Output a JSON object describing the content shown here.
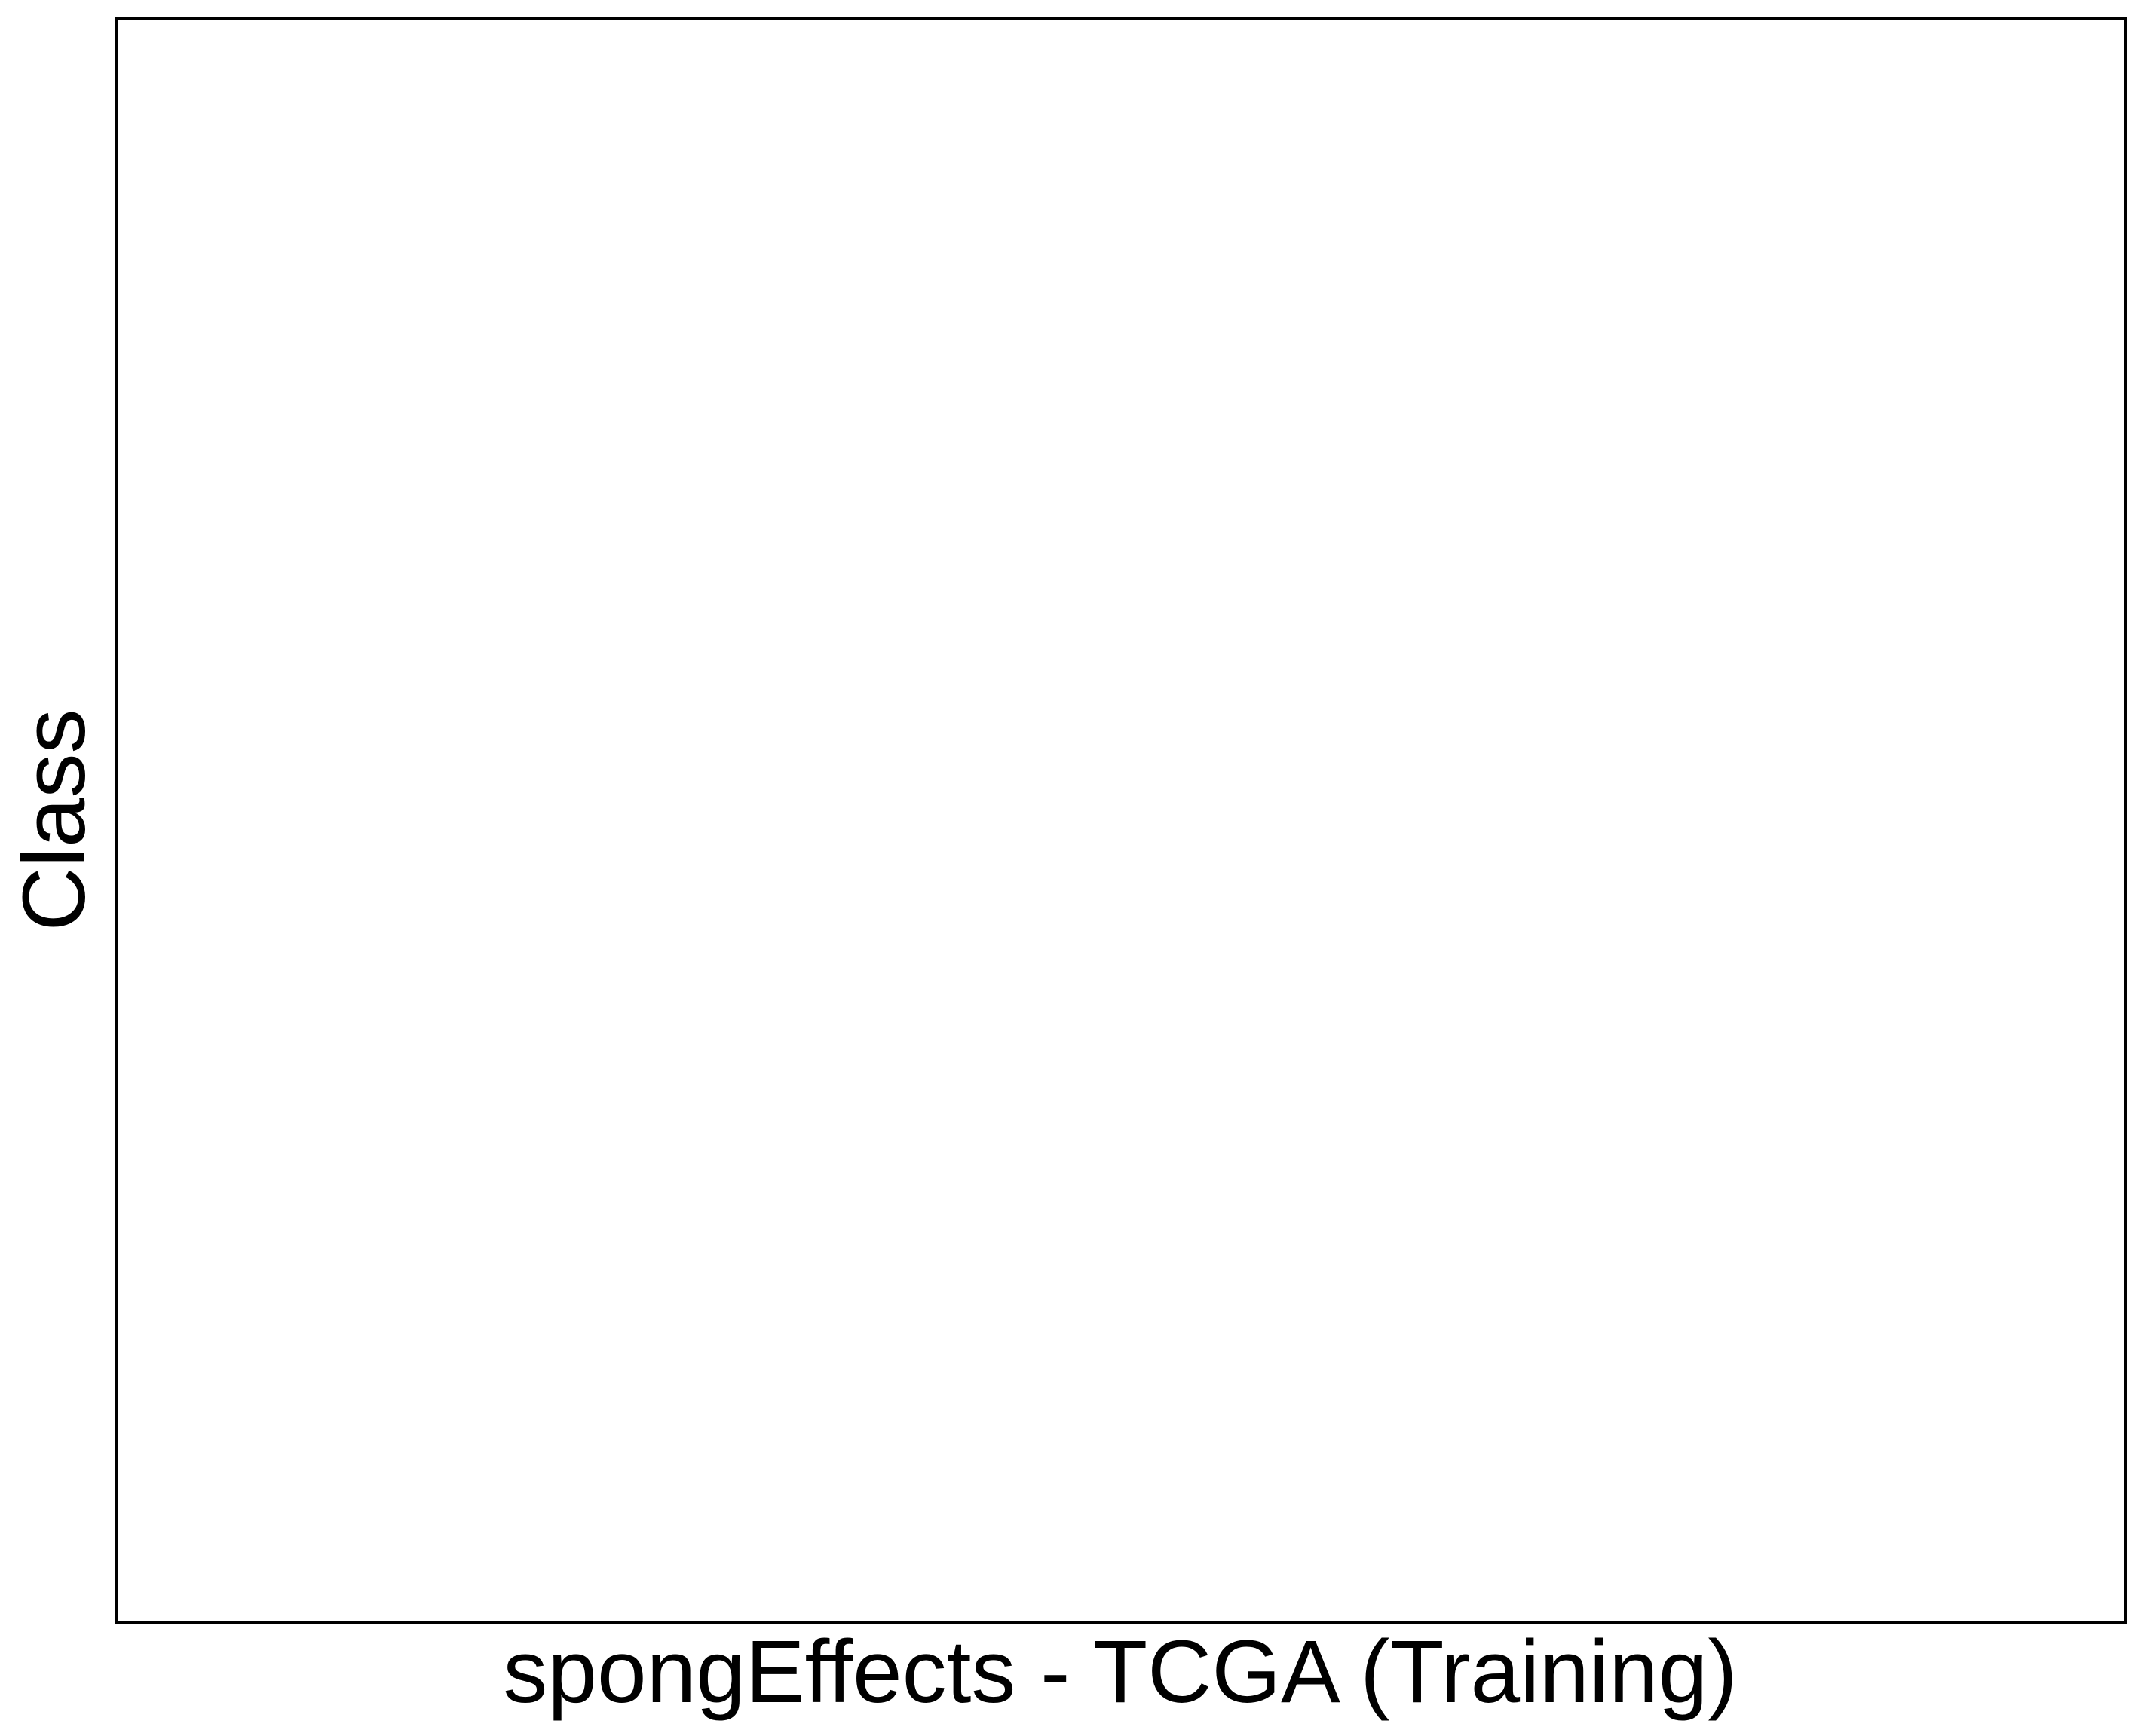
{
  "chart_data": {
    "type": "scatter",
    "xlabel": "spongEffects - TCGA (Training)",
    "ylabel": "Class",
    "grid": false,
    "series": []
  },
  "colors": {
    "background": "#ffffff",
    "panel_border": "#000000",
    "text": "#000000"
  }
}
